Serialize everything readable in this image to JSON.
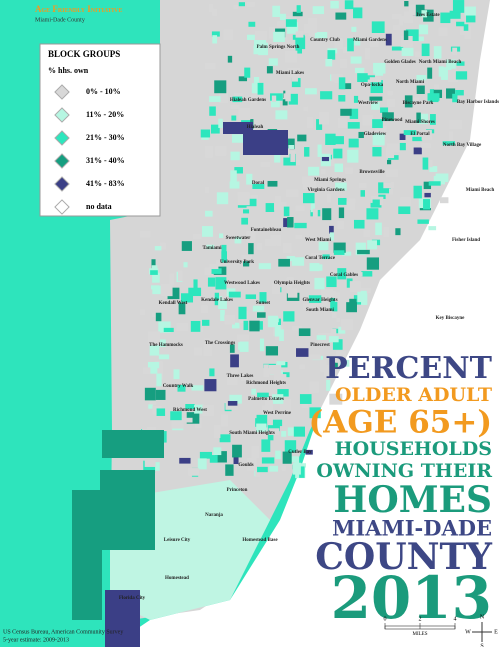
{
  "header": {
    "brand": "Age Friendly Initiative",
    "sub": "Miami-Dade County"
  },
  "legend": {
    "title": "BLOCK GROUPS",
    "subtitle": "% hhs. own",
    "items": [
      {
        "label": "0% - 10%",
        "color": "#d8d8d8"
      },
      {
        "label": "11% - 20%",
        "color": "#b6f6e2"
      },
      {
        "label": "21% - 30%",
        "color": "#2de6bd"
      },
      {
        "label": "31% - 40%",
        "color": "#169e80"
      },
      {
        "label": "41% - 83%",
        "color": "#3b3f86"
      },
      {
        "label": "no data",
        "color": "#ffffff"
      }
    ]
  },
  "title_lines": [
    {
      "text": "PERCENT",
      "color": "#3d4785"
    },
    {
      "text": "OLDER ADULT",
      "color": "#f29a1f"
    },
    {
      "text": "(AGE 65+)",
      "color": "#f29a1f"
    },
    {
      "text": "HOUSEHOLDS",
      "color": "#1b9b7c"
    },
    {
      "text": "OWNING THEIR",
      "color": "#1b9b7c"
    },
    {
      "text": "HOMES",
      "color": "#1b9b7c"
    },
    {
      "text": "MIAMI-DADE",
      "color": "#3d4785"
    },
    {
      "text": "COUNTY",
      "color": "#3d4785"
    },
    {
      "text": "2013",
      "color": "#1b9b7c"
    }
  ],
  "places": [
    "Ives Estate",
    "Country Club",
    "Palm Springs North",
    "Miami Gardens",
    "Golden Glades",
    "North Miami Beach",
    "Miami Lakes",
    "Opa-locka",
    "North Miami",
    "Hialeah Gardens",
    "Westview",
    "Biscayne Park",
    "Bay Harbor Islands",
    "Hialeah",
    "Pinewood",
    "Miami Shores",
    "Gladeview",
    "El Portal",
    "North Bay Village",
    "Brownsville",
    "Doral",
    "Miami Springs",
    "Virginia Gardens",
    "Miami Beach",
    "Sweetwater",
    "Fontainebleau",
    "West Miami",
    "Coral Terrace",
    "Coral Gables",
    "Fisher Island",
    "Tamiami",
    "University Park",
    "Westwood Lakes",
    "Olympia Heights",
    "Kendall West",
    "Kendale Lakes",
    "Sunset",
    "Glenvar Heights",
    "South Miami",
    "Key Biscayne",
    "The Hammocks",
    "The Crossings",
    "Pinecrest",
    "Country Walk",
    "Three Lakes",
    "Richmond Heights",
    "Palmetto Estates",
    "West Perrine",
    "Richmond West",
    "South Miami Heights",
    "Cutler Bay",
    "Goulds",
    "Princeton",
    "Naranja",
    "Leisure City",
    "Homestead Base",
    "Homestead",
    "Florida City"
  ],
  "source": [
    "US Census Bureau, American Community Survey",
    "5-year estimate: 2009-2013"
  ],
  "scale": {
    "ticks": [
      0,
      2,
      4
    ],
    "unit": "MILES"
  },
  "compass": {
    "n": "N",
    "e": "E",
    "s": "S",
    "w": "W"
  }
}
